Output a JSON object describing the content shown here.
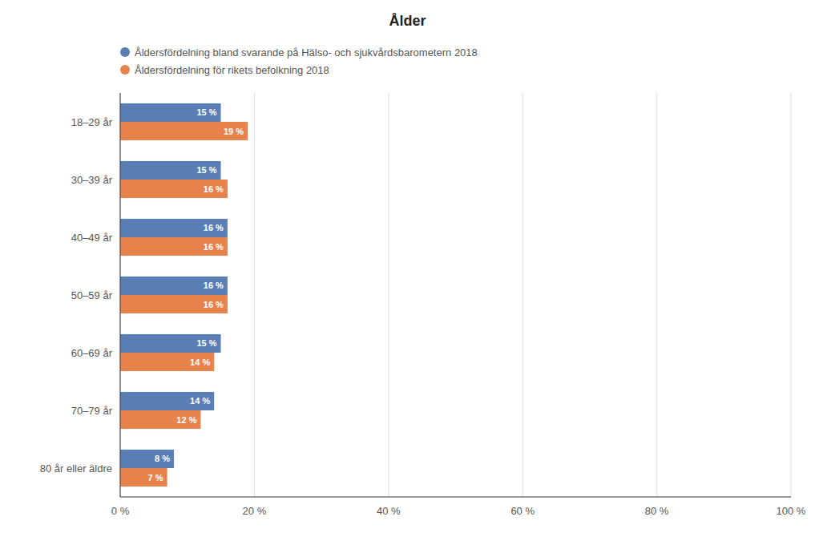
{
  "chart_data": {
    "type": "bar",
    "orientation": "horizontal",
    "title": "Ålder",
    "categories": [
      "18–29 år",
      "30–39 år",
      "40–49 år",
      "50–59 år",
      "60–69 år",
      "70–79 år",
      "80 år eller äldre"
    ],
    "series": [
      {
        "name": "Åldersfördelning bland svarande på Hälso- och sjukvårdsbarometern 2018",
        "color": "#5a7fb5",
        "values": [
          15,
          15,
          16,
          16,
          15,
          14,
          8
        ],
        "value_labels": [
          "15 %",
          "15 %",
          "16 %",
          "16 %",
          "15 %",
          "14 %",
          "8 %"
        ]
      },
      {
        "name": "Åldersfördelning för rikets befolkning 2018",
        "color": "#e8834e",
        "values": [
          19,
          16,
          16,
          16,
          14,
          12,
          7
        ],
        "value_labels": [
          "19 %",
          "16 %",
          "16 %",
          "16 %",
          "14 %",
          "12 %",
          "7 %"
        ]
      }
    ],
    "xlim": [
      0,
      100
    ],
    "xticks": [
      {
        "value": 0,
        "label": "0 %"
      },
      {
        "value": 20,
        "label": "20 %"
      },
      {
        "value": 40,
        "label": "40 %"
      },
      {
        "value": 60,
        "label": "60 %"
      },
      {
        "value": 80,
        "label": "80 %"
      },
      {
        "value": 100,
        "label": "100 %"
      }
    ],
    "grid": true,
    "data_labels": true,
    "legend": "upper left"
  }
}
